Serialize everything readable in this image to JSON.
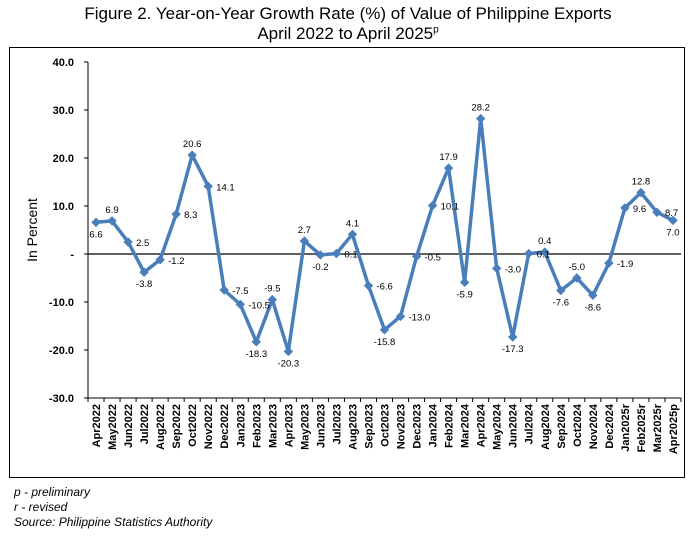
{
  "title": {
    "line1": "Figure 2. Year-on-Year Growth Rate (%) of Value of Philippine Exports",
    "line2": "April 2022 to April 2025",
    "line2_superscript": "p"
  },
  "notes": {
    "preliminary": "p - preliminary",
    "revised": "r - revised",
    "source": "Source: Philippine Statistics Authority"
  },
  "chart_data": {
    "type": "line",
    "title": "Figure 2. Year-on-Year Growth Rate (%) of Value of Philippine Exports April 2022 to April 2025p",
    "xlabel": "",
    "ylabel": "In Percent",
    "ylim": [
      -30,
      40
    ],
    "yticks": [
      40,
      30,
      20,
      10,
      0,
      -10,
      -20,
      -30
    ],
    "ytick_labels": [
      "40.0",
      "30.0",
      "20.0",
      "10.0",
      "-",
      "-10.0",
      "-20.0",
      "-30.0"
    ],
    "grid": false,
    "legend": "none",
    "line_color": "#4a7ebb",
    "zero_line_color": "#000000",
    "categories": [
      "Apr2022",
      "May2022",
      "Jun2022",
      "Jul2022",
      "Aug2022",
      "Sep2022",
      "Oct2022",
      "Nov2022",
      "Dec2022",
      "Jan2023",
      "Feb2023",
      "Mar2023",
      "Apr2023",
      "May2023",
      "Jun2023",
      "Jul2023",
      "Aug2023",
      "Sep2023",
      "Oct2023",
      "Nov2023",
      "Dec2023",
      "Jan2024",
      "Feb2024",
      "Mar2024",
      "Apr2024",
      "May2024",
      "Jun2024",
      "Jul2024",
      "Aug2024",
      "Sep2024",
      "Oct2024",
      "Nov2024",
      "Dec2024",
      "Jan2025r",
      "Feb2025r",
      "Mar2025r",
      "Apr2025p"
    ],
    "values": [
      6.6,
      6.9,
      2.5,
      -3.8,
      -1.2,
      8.3,
      20.6,
      14.1,
      -7.5,
      -10.5,
      -18.3,
      -9.5,
      -20.3,
      2.7,
      -0.2,
      0.1,
      4.1,
      -6.6,
      -15.8,
      -13.0,
      -0.5,
      10.1,
      17.9,
      -5.9,
      28.2,
      -3.0,
      -17.3,
      0.1,
      0.4,
      -7.6,
      -5.0,
      -8.6,
      -1.9,
      9.6,
      12.8,
      8.7,
      7.0
    ],
    "data_labels": [
      "6.6",
      "6.9",
      "2.5",
      "-3.8",
      "-1.2",
      "8.3",
      "20.6",
      "14.1",
      "-7.5",
      "-10.5",
      "-18.3",
      "-9.5",
      "-20.3",
      "2.7",
      "-0.2",
      "0.1",
      "4.1",
      "-6.6",
      "-15.8",
      "-13.0",
      "-0.5",
      "10.1",
      "17.9",
      "-5.9",
      "28.2",
      "-3.0",
      "-17.3",
      "0.1",
      "0.4",
      "-7.6",
      "-5.0",
      "-8.6",
      "-1.9",
      "9.6",
      "12.8",
      "8.7",
      "7.0"
    ]
  }
}
